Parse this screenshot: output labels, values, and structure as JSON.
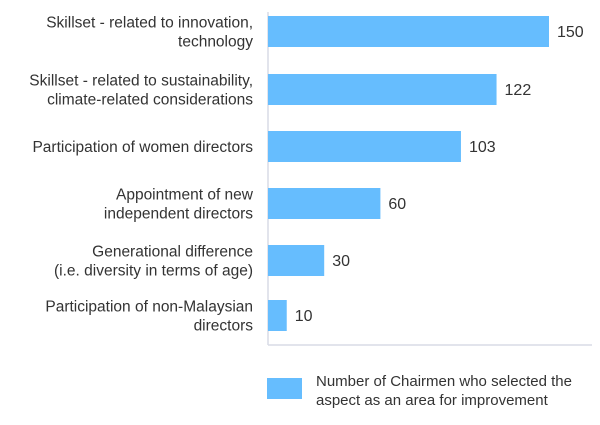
{
  "chart_data": {
    "type": "bar",
    "orientation": "horizontal",
    "categories": [
      [
        "Skillset - related to innovation,",
        "technology"
      ],
      [
        "Skillset - related to sustainability,",
        "climate-related considerations"
      ],
      [
        "Participation of women directors"
      ],
      [
        "Appointment of new",
        "independent directors"
      ],
      [
        "Generational difference",
        "(i.e. diversity in terms of age)"
      ],
      [
        "Participation of non-Malaysian",
        "directors"
      ]
    ],
    "series": [
      {
        "name": "Number of Chairmen who selected the aspect as an area for improvement",
        "legend_lines": [
          "Number of Chairmen who selected the",
          "aspect as an area for improvement"
        ],
        "values": [
          150,
          122,
          103,
          60,
          30,
          10
        ],
        "color": "#66bdfe"
      }
    ],
    "xlim": [
      0,
      150
    ],
    "grid": false,
    "legend_position": "bottom",
    "title": "",
    "xlabel": "",
    "ylabel": ""
  },
  "colors": {
    "axis": "#d8dce6",
    "text": "#333333"
  }
}
